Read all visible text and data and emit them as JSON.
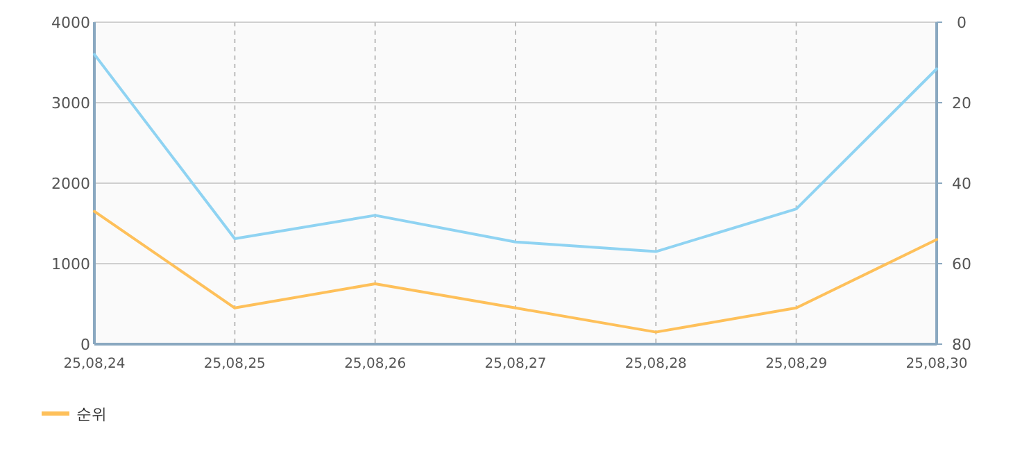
{
  "chart_data": {
    "type": "line",
    "categories": [
      "25,08,24",
      "25,08,25",
      "25,08,26",
      "25,08,27",
      "25,08,28",
      "25,08,29",
      "25,08,30"
    ],
    "series": [
      {
        "color": "#8fd3f2",
        "values": [
          3600,
          1310,
          1600,
          1270,
          1150,
          1680,
          3420
        ]
      },
      {
        "name": "순위",
        "color": "#fec05a",
        "axis": "y2",
        "values": [
          47,
          71,
          65,
          71,
          77,
          71,
          54
        ]
      }
    ],
    "ylim": [
      0,
      4000
    ],
    "yticks": [
      0,
      1000,
      2000,
      3000,
      4000
    ],
    "y2lim": [
      80,
      0
    ],
    "y2ticks": [
      0,
      20,
      40,
      60,
      80
    ],
    "grid": true,
    "legend": "bottom left"
  }
}
